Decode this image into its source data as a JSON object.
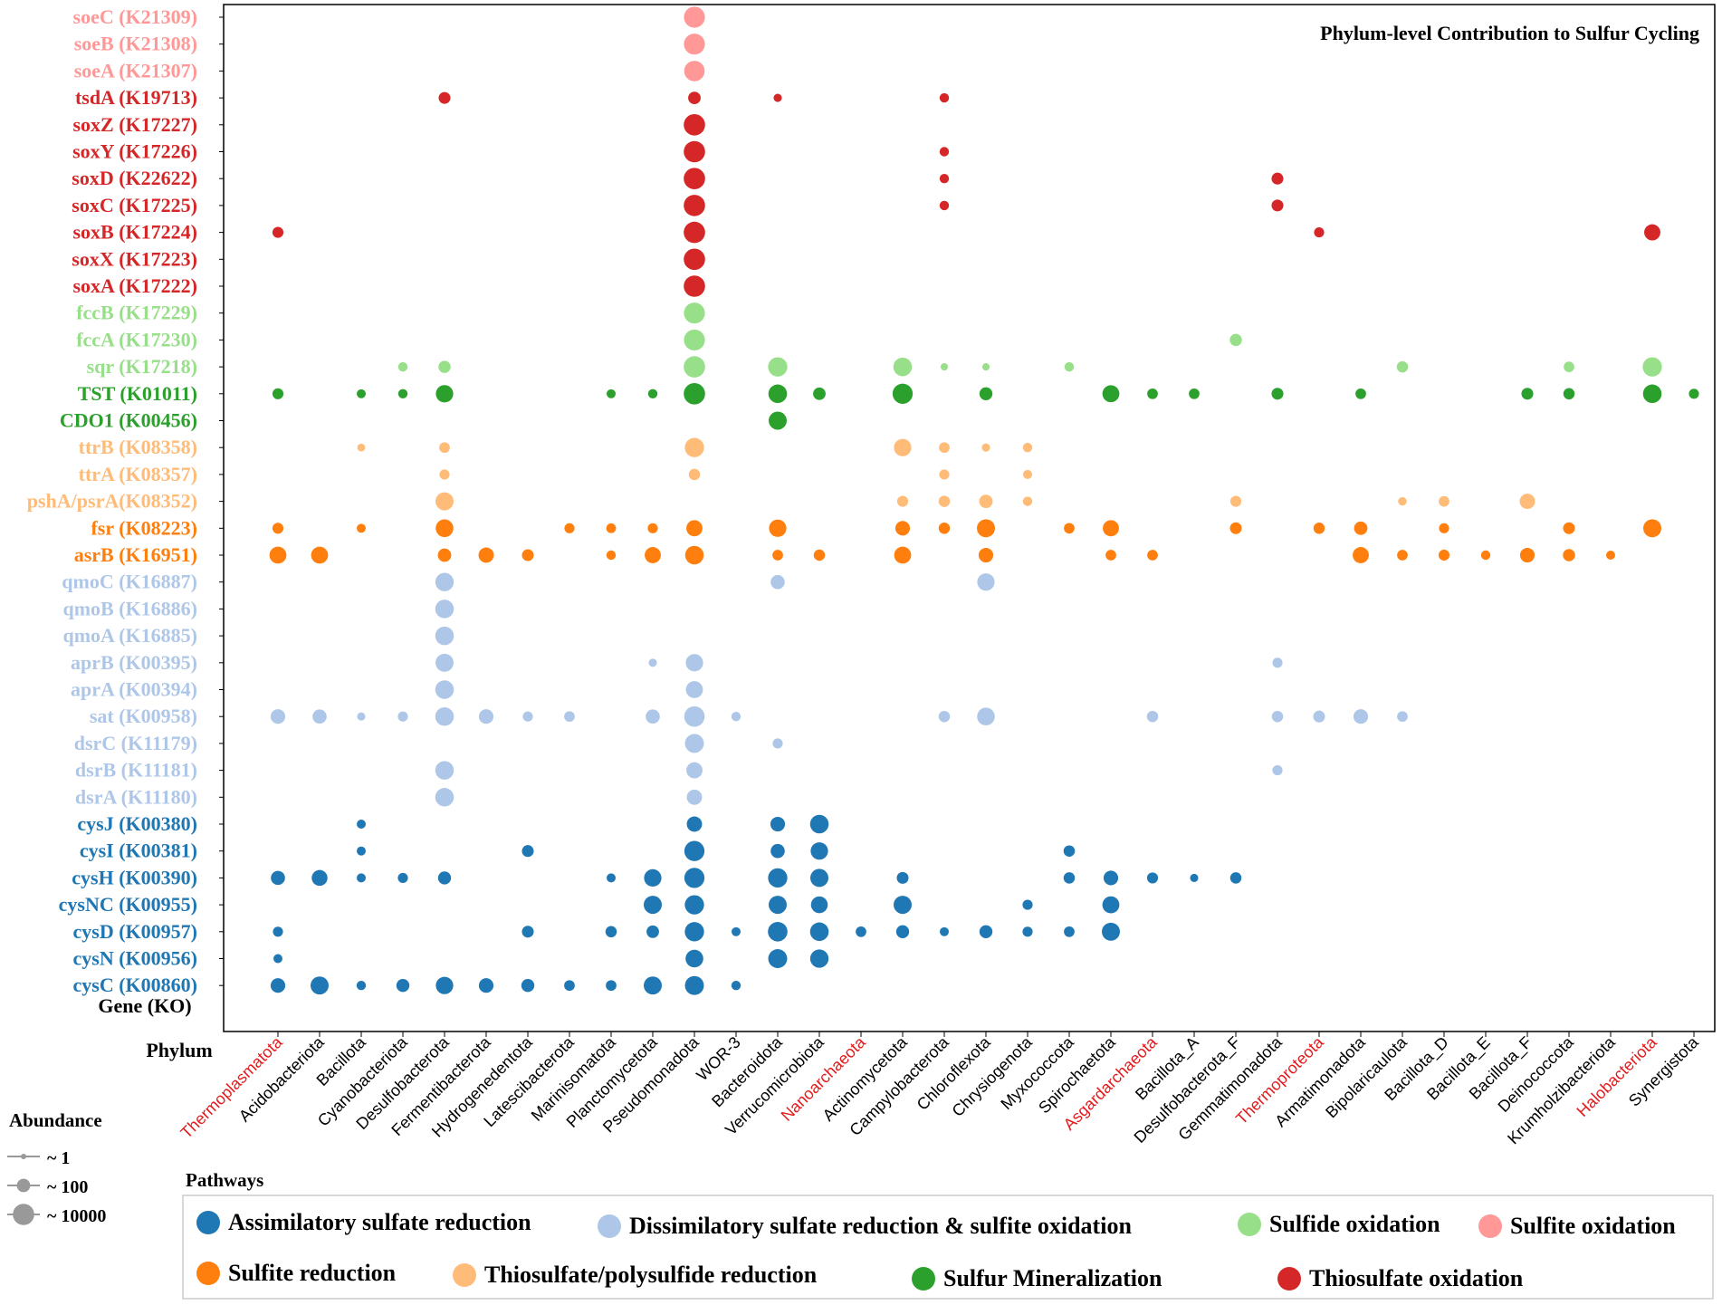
{
  "chart_data": {
    "type": "bubble-matrix",
    "title": "Phylum-level Contribution to Sulfur Cycling",
    "ylabel": "Gene (KO)",
    "xlabel": "Phylum",
    "colors": {
      "assimilatory": "#1f77b4",
      "dissimilatory": "#aec7e8",
      "sulfide_ox": "#98df8a",
      "sulfite_ox": "#ff9896",
      "sulfite_red": "#ff7f0e",
      "thiosulfate_red": "#ffbb78",
      "mineralization": "#2ca02c",
      "thiosulfate_ox": "#d62728",
      "highlight_text": "#e41a1c"
    },
    "genes": [
      {
        "label": "soeC (K21309)",
        "pathway": "sulfite_ox"
      },
      {
        "label": "soeB (K21308)",
        "pathway": "sulfite_ox"
      },
      {
        "label": "soeA (K21307)",
        "pathway": "sulfite_ox"
      },
      {
        "label": "tsdA (K19713)",
        "pathway": "thiosulfate_ox"
      },
      {
        "label": "soxZ (K17227)",
        "pathway": "thiosulfate_ox"
      },
      {
        "label": "soxY (K17226)",
        "pathway": "thiosulfate_ox"
      },
      {
        "label": "soxD (K22622)",
        "pathway": "thiosulfate_ox"
      },
      {
        "label": "soxC (K17225)",
        "pathway": "thiosulfate_ox"
      },
      {
        "label": "soxB (K17224)",
        "pathway": "thiosulfate_ox"
      },
      {
        "label": "soxX (K17223)",
        "pathway": "thiosulfate_ox"
      },
      {
        "label": "soxA (K17222)",
        "pathway": "thiosulfate_ox"
      },
      {
        "label": "fccB (K17229)",
        "pathway": "sulfide_ox"
      },
      {
        "label": "fccA (K17230)",
        "pathway": "sulfide_ox"
      },
      {
        "label": "sqr (K17218)",
        "pathway": "sulfide_ox"
      },
      {
        "label": "TST (K01011)",
        "pathway": "mineralization"
      },
      {
        "label": "CDO1 (K00456)",
        "pathway": "mineralization"
      },
      {
        "label": "ttrB (K08358)",
        "pathway": "thiosulfate_red"
      },
      {
        "label": "ttrA (K08357)",
        "pathway": "thiosulfate_red"
      },
      {
        "label": "pshA/psrA(K08352)",
        "pathway": "thiosulfate_red"
      },
      {
        "label": "fsr (K08223)",
        "pathway": "sulfite_red"
      },
      {
        "label": "asrB (K16951)",
        "pathway": "sulfite_red"
      },
      {
        "label": "qmoC (K16887)",
        "pathway": "dissimilatory"
      },
      {
        "label": "qmoB (K16886)",
        "pathway": "dissimilatory"
      },
      {
        "label": "qmoA (K16885)",
        "pathway": "dissimilatory"
      },
      {
        "label": "aprB (K00395)",
        "pathway": "dissimilatory"
      },
      {
        "label": "aprA (K00394)",
        "pathway": "dissimilatory"
      },
      {
        "label": "sat (K00958)",
        "pathway": "dissimilatory"
      },
      {
        "label": "dsrC (K11179)",
        "pathway": "dissimilatory"
      },
      {
        "label": "dsrB (K11181)",
        "pathway": "dissimilatory"
      },
      {
        "label": "dsrA (K11180)",
        "pathway": "dissimilatory"
      },
      {
        "label": "cysJ (K00380)",
        "pathway": "assimilatory"
      },
      {
        "label": "cysI (K00381)",
        "pathway": "assimilatory"
      },
      {
        "label": "cysH (K00390)",
        "pathway": "assimilatory"
      },
      {
        "label": "cysNC (K00955)",
        "pathway": "assimilatory"
      },
      {
        "label": "cysD (K00957)",
        "pathway": "assimilatory"
      },
      {
        "label": "cysN (K00956)",
        "pathway": "assimilatory"
      },
      {
        "label": "cysC (K00860)",
        "pathway": "assimilatory"
      }
    ],
    "phyla": [
      {
        "label": "Thermoplasmatota",
        "highlight": true
      },
      {
        "label": "Acidobacteriota",
        "highlight": false
      },
      {
        "label": "Bacillota",
        "highlight": false
      },
      {
        "label": "Cyanobacteriota",
        "highlight": false
      },
      {
        "label": "Desulfobacterota",
        "highlight": false
      },
      {
        "label": "Fermentibacterota",
        "highlight": false
      },
      {
        "label": "Hydrogenedentota",
        "highlight": false
      },
      {
        "label": "Latescibacterota",
        "highlight": false
      },
      {
        "label": "Marinisomatota",
        "highlight": false
      },
      {
        "label": "Planctomycetota",
        "highlight": false
      },
      {
        "label": "Pseudomonadota",
        "highlight": false
      },
      {
        "label": "WOR-3",
        "highlight": false
      },
      {
        "label": "Bacteroidota",
        "highlight": false
      },
      {
        "label": "Verrucomicrobiota",
        "highlight": false
      },
      {
        "label": "Nanoarchaeota",
        "highlight": true
      },
      {
        "label": "Actinomycetota",
        "highlight": false
      },
      {
        "label": "Campylobacterota",
        "highlight": false
      },
      {
        "label": "Chloroflexota",
        "highlight": false
      },
      {
        "label": "Chrysiogenota",
        "highlight": false
      },
      {
        "label": "Myxococcota",
        "highlight": false
      },
      {
        "label": "Spirochaetota",
        "highlight": false
      },
      {
        "label": "Asgardarchaeota",
        "highlight": true
      },
      {
        "label": "Bacillota_A",
        "highlight": false
      },
      {
        "label": "Desulfobacterota_F",
        "highlight": false
      },
      {
        "label": "Gemmatimonadota",
        "highlight": false
      },
      {
        "label": "Thermoproteota",
        "highlight": true
      },
      {
        "label": "Armatimonadota",
        "highlight": false
      },
      {
        "label": "Bipolaricaulota",
        "highlight": false
      },
      {
        "label": "Bacillota_D",
        "highlight": false
      },
      {
        "label": "Bacillota_E",
        "highlight": false
      },
      {
        "label": "Bacillota_F",
        "highlight": false
      },
      {
        "label": "Deinococcota",
        "highlight": false
      },
      {
        "label": "Krumholzibacteriota",
        "highlight": false
      },
      {
        "label": "Halobacteriota",
        "highlight": true
      },
      {
        "label": "Synergistota",
        "highlight": false
      }
    ],
    "points_note": "[gene_index, phylum_index, approx_abundance]",
    "points": [
      [
        0,
        10,
        8000
      ],
      [
        1,
        10,
        8000
      ],
      [
        2,
        10,
        6000
      ],
      [
        3,
        4,
        40
      ],
      [
        3,
        10,
        60
      ],
      [
        3,
        12,
        5
      ],
      [
        3,
        16,
        10
      ],
      [
        4,
        10,
        10000
      ],
      [
        5,
        10,
        10000
      ],
      [
        5,
        16,
        10
      ],
      [
        6,
        10,
        10000
      ],
      [
        6,
        16,
        10
      ],
      [
        6,
        24,
        40
      ],
      [
        7,
        10,
        10000
      ],
      [
        7,
        16,
        10
      ],
      [
        7,
        24,
        40
      ],
      [
        8,
        0,
        25
      ],
      [
        8,
        10,
        10000
      ],
      [
        8,
        25,
        15
      ],
      [
        8,
        33,
        500
      ],
      [
        9,
        10,
        10000
      ],
      [
        10,
        10,
        10000
      ],
      [
        11,
        10,
        8000
      ],
      [
        12,
        10,
        8000
      ],
      [
        12,
        23,
        50
      ],
      [
        13,
        3,
        10
      ],
      [
        13,
        4,
        50
      ],
      [
        13,
        10,
        10000
      ],
      [
        13,
        12,
        3000
      ],
      [
        13,
        15,
        2000
      ],
      [
        13,
        16,
        3
      ],
      [
        13,
        17,
        3
      ],
      [
        13,
        19,
        10
      ],
      [
        13,
        27,
        30
      ],
      [
        13,
        31,
        20
      ],
      [
        13,
        33,
        3000
      ],
      [
        14,
        0,
        25
      ],
      [
        14,
        2,
        8
      ],
      [
        14,
        3,
        10
      ],
      [
        14,
        4,
        1000
      ],
      [
        14,
        8,
        8
      ],
      [
        14,
        9,
        10
      ],
      [
        14,
        10,
        10000
      ],
      [
        14,
        12,
        2000
      ],
      [
        14,
        13,
        60
      ],
      [
        14,
        15,
        5000
      ],
      [
        14,
        17,
        80
      ],
      [
        14,
        20,
        800
      ],
      [
        14,
        21,
        20
      ],
      [
        14,
        22,
        20
      ],
      [
        14,
        24,
        40
      ],
      [
        14,
        26,
        20
      ],
      [
        14,
        30,
        40
      ],
      [
        14,
        31,
        30
      ],
      [
        14,
        33,
        2000
      ],
      [
        14,
        34,
        15
      ],
      [
        15,
        12,
        1500
      ],
      [
        16,
        2,
        4
      ],
      [
        16,
        4,
        20
      ],
      [
        16,
        10,
        3000
      ],
      [
        16,
        15,
        1000
      ],
      [
        16,
        16,
        20
      ],
      [
        16,
        17,
        5
      ],
      [
        16,
        18,
        10
      ],
      [
        17,
        4,
        15
      ],
      [
        17,
        10,
        30
      ],
      [
        17,
        16,
        15
      ],
      [
        17,
        18,
        8
      ],
      [
        18,
        4,
        1500
      ],
      [
        18,
        15,
        25
      ],
      [
        18,
        16,
        30
      ],
      [
        18,
        17,
        100
      ],
      [
        18,
        18,
        10
      ],
      [
        18,
        23,
        25
      ],
      [
        18,
        27,
        6
      ],
      [
        18,
        28,
        20
      ],
      [
        18,
        30,
        300
      ],
      [
        19,
        0,
        25
      ],
      [
        19,
        2,
        8
      ],
      [
        19,
        4,
        1200
      ],
      [
        19,
        7,
        15
      ],
      [
        19,
        8,
        12
      ],
      [
        19,
        9,
        15
      ],
      [
        19,
        10,
        500
      ],
      [
        19,
        12,
        1000
      ],
      [
        19,
        15,
        200
      ],
      [
        19,
        16,
        30
      ],
      [
        19,
        17,
        1500
      ],
      [
        19,
        19,
        20
      ],
      [
        19,
        20,
        500
      ],
      [
        19,
        23,
        40
      ],
      [
        19,
        25,
        30
      ],
      [
        19,
        26,
        100
      ],
      [
        19,
        28,
        15
      ],
      [
        19,
        31,
        40
      ],
      [
        19,
        33,
        1500
      ],
      [
        20,
        0,
        800
      ],
      [
        20,
        1,
        800
      ],
      [
        20,
        4,
        100
      ],
      [
        20,
        5,
        300
      ],
      [
        20,
        6,
        40
      ],
      [
        20,
        8,
        10
      ],
      [
        20,
        9,
        500
      ],
      [
        20,
        10,
        2000
      ],
      [
        20,
        12,
        20
      ],
      [
        20,
        13,
        30
      ],
      [
        20,
        15,
        800
      ],
      [
        20,
        17,
        200
      ],
      [
        20,
        20,
        20
      ],
      [
        20,
        21,
        20
      ],
      [
        20,
        26,
        500
      ],
      [
        20,
        27,
        20
      ],
      [
        20,
        28,
        25
      ],
      [
        20,
        29,
        10
      ],
      [
        20,
        30,
        200
      ],
      [
        20,
        31,
        50
      ],
      [
        20,
        32,
        8
      ],
      [
        21,
        4,
        1800
      ],
      [
        21,
        12,
        150
      ],
      [
        21,
        17,
        1000
      ],
      [
        22,
        4,
        2000
      ],
      [
        23,
        4,
        2000
      ],
      [
        24,
        4,
        1500
      ],
      [
        24,
        9,
        5
      ],
      [
        24,
        10,
        1000
      ],
      [
        24,
        24,
        15
      ],
      [
        25,
        4,
        2000
      ],
      [
        25,
        10,
        800
      ],
      [
        26,
        0,
        200
      ],
      [
        26,
        1,
        150
      ],
      [
        26,
        2,
        5
      ],
      [
        26,
        3,
        15
      ],
      [
        26,
        4,
        2000
      ],
      [
        26,
        5,
        200
      ],
      [
        26,
        6,
        15
      ],
      [
        26,
        7,
        20
      ],
      [
        26,
        9,
        150
      ],
      [
        26,
        10,
        6000
      ],
      [
        26,
        11,
        10
      ],
      [
        26,
        16,
        30
      ],
      [
        26,
        17,
        1200
      ],
      [
        26,
        21,
        30
      ],
      [
        26,
        24,
        30
      ],
      [
        26,
        25,
        40
      ],
      [
        26,
        26,
        200
      ],
      [
        26,
        27,
        20
      ],
      [
        27,
        10,
        2500
      ],
      [
        27,
        12,
        15
      ],
      [
        28,
        4,
        2000
      ],
      [
        28,
        10,
        500
      ],
      [
        28,
        24,
        15
      ],
      [
        29,
        4,
        2000
      ],
      [
        29,
        10,
        300
      ],
      [
        30,
        2,
        8
      ],
      [
        30,
        10,
        300
      ],
      [
        30,
        12,
        200
      ],
      [
        30,
        13,
        2000
      ],
      [
        31,
        2,
        8
      ],
      [
        31,
        6,
        40
      ],
      [
        31,
        10,
        5000
      ],
      [
        31,
        12,
        150
      ],
      [
        31,
        13,
        1000
      ],
      [
        31,
        19,
        30
      ],
      [
        32,
        0,
        150
      ],
      [
        32,
        1,
        400
      ],
      [
        32,
        2,
        8
      ],
      [
        32,
        3,
        15
      ],
      [
        32,
        4,
        80
      ],
      [
        32,
        8,
        8
      ],
      [
        32,
        9,
        1000
      ],
      [
        32,
        10,
        5000
      ],
      [
        32,
        12,
        3000
      ],
      [
        32,
        13,
        1500
      ],
      [
        32,
        15,
        40
      ],
      [
        32,
        19,
        30
      ],
      [
        32,
        20,
        200
      ],
      [
        32,
        21,
        25
      ],
      [
        32,
        22,
        5
      ],
      [
        32,
        23,
        30
      ],
      [
        33,
        9,
        1500
      ],
      [
        33,
        10,
        3000
      ],
      [
        33,
        12,
        1500
      ],
      [
        33,
        13,
        700
      ],
      [
        33,
        15,
        1500
      ],
      [
        33,
        18,
        15
      ],
      [
        33,
        20,
        800
      ],
      [
        34,
        0,
        15
      ],
      [
        34,
        6,
        40
      ],
      [
        34,
        8,
        30
      ],
      [
        34,
        9,
        60
      ],
      [
        34,
        10,
        3000
      ],
      [
        34,
        11,
        8
      ],
      [
        34,
        12,
        3500
      ],
      [
        34,
        13,
        2000
      ],
      [
        34,
        14,
        20
      ],
      [
        34,
        15,
        80
      ],
      [
        34,
        16,
        8
      ],
      [
        34,
        17,
        80
      ],
      [
        34,
        18,
        15
      ],
      [
        34,
        19,
        20
      ],
      [
        34,
        20,
        1500
      ],
      [
        35,
        0,
        8
      ],
      [
        35,
        10,
        1200
      ],
      [
        35,
        12,
        2500
      ],
      [
        35,
        13,
        1800
      ],
      [
        36,
        0,
        200
      ],
      [
        36,
        1,
        1500
      ],
      [
        36,
        2,
        10
      ],
      [
        36,
        3,
        80
      ],
      [
        36,
        4,
        1000
      ],
      [
        36,
        5,
        200
      ],
      [
        36,
        6,
        80
      ],
      [
        36,
        7,
        20
      ],
      [
        36,
        8,
        20
      ],
      [
        36,
        9,
        1500
      ],
      [
        36,
        10,
        2500
      ],
      [
        36,
        11,
        10
      ]
    ],
    "legend_pathways_title": "Pathways",
    "legend_pathways": [
      {
        "key": "assimilatory",
        "label": "Assimilatory sulfate reduction"
      },
      {
        "key": "dissimilatory",
        "label": "Dissimilatory sulfate reduction & sulfite oxidation"
      },
      {
        "key": "sulfide_ox",
        "label": "Sulfide oxidation"
      },
      {
        "key": "sulfite_ox",
        "label": "Sulfite oxidation"
      },
      {
        "key": "sulfite_red",
        "label": "Sulfite reduction"
      },
      {
        "key": "thiosulfate_red",
        "label": "Thiosulfate/polysulfide reduction"
      },
      {
        "key": "mineralization",
        "label": "Sulfur Mineralization"
      },
      {
        "key": "thiosulfate_ox",
        "label": "Thiosulfate oxidation"
      }
    ],
    "legend_size_title": "Abundance",
    "legend_sizes": [
      {
        "value": 1,
        "label": "~ 1"
      },
      {
        "value": 100,
        "label": "~ 100"
      },
      {
        "value": 10000,
        "label": "~ 10000"
      }
    ]
  }
}
